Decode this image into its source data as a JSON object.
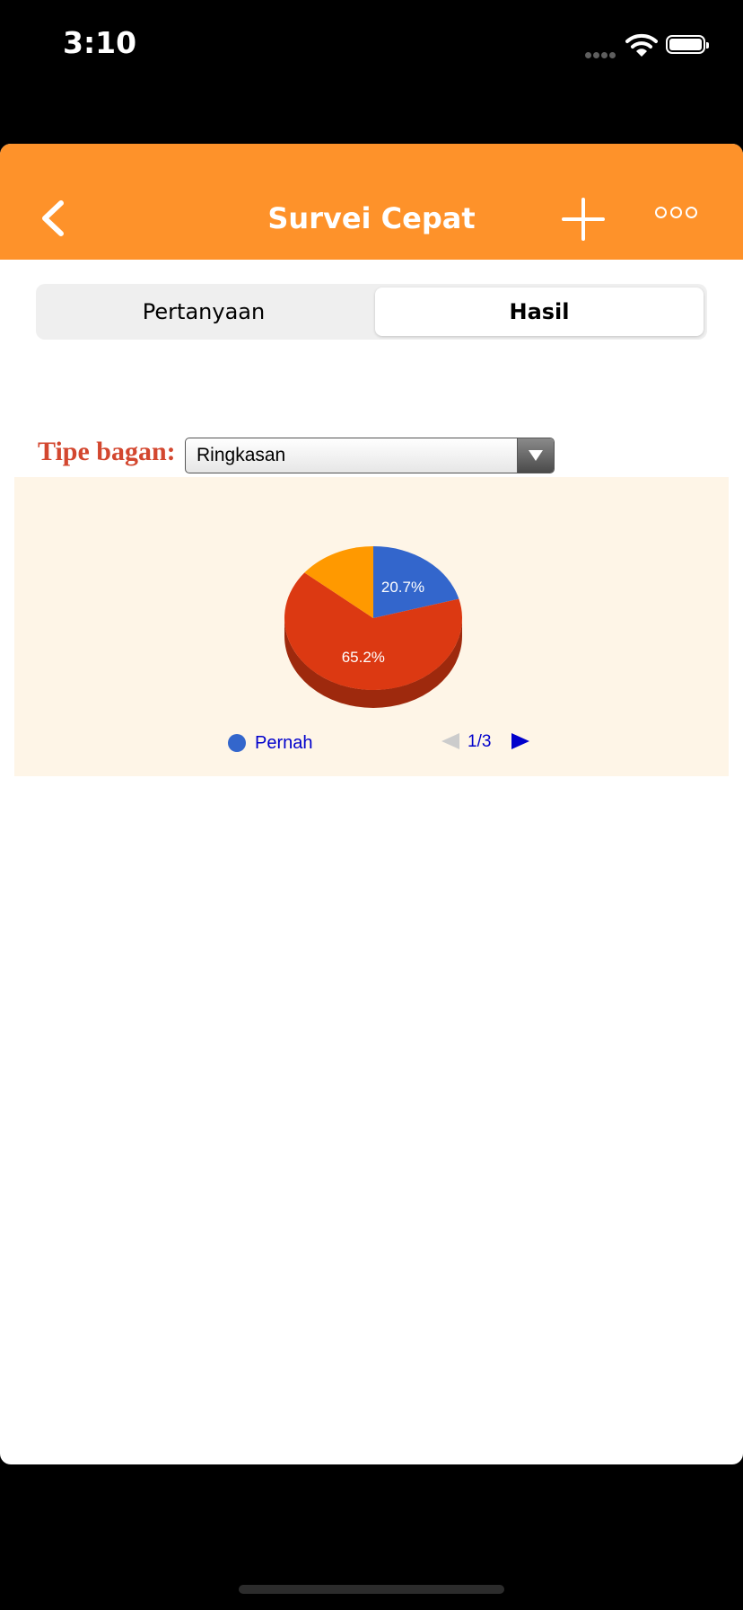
{
  "status_bar": {
    "time": "3:10"
  },
  "navbar": {
    "title": "Survei Cepat"
  },
  "tabs": [
    {
      "label": "Pertanyaan",
      "selected": false
    },
    {
      "label": "Hasil",
      "selected": true
    }
  ],
  "chart_type": {
    "label": "Tipe bagan:",
    "selected": "Ringkasan"
  },
  "chart_data": {
    "type": "pie",
    "slices": [
      {
        "label": "Pernah",
        "value": 20.7,
        "display": "20.7%",
        "color": "#3366cc"
      },
      {
        "label": "",
        "value": 65.2,
        "display": "65.2%",
        "color": "#dc3912"
      },
      {
        "label": "",
        "value": 14.1,
        "display": "",
        "color": "#ff9900"
      }
    ],
    "legend": {
      "visible_entry": "Pernah",
      "page": "1/3"
    }
  },
  "colors": {
    "accent": "#fe922a",
    "label_red": "#d3472f",
    "chart_bg": "#fef5e7",
    "link_blue": "#0000cc"
  }
}
